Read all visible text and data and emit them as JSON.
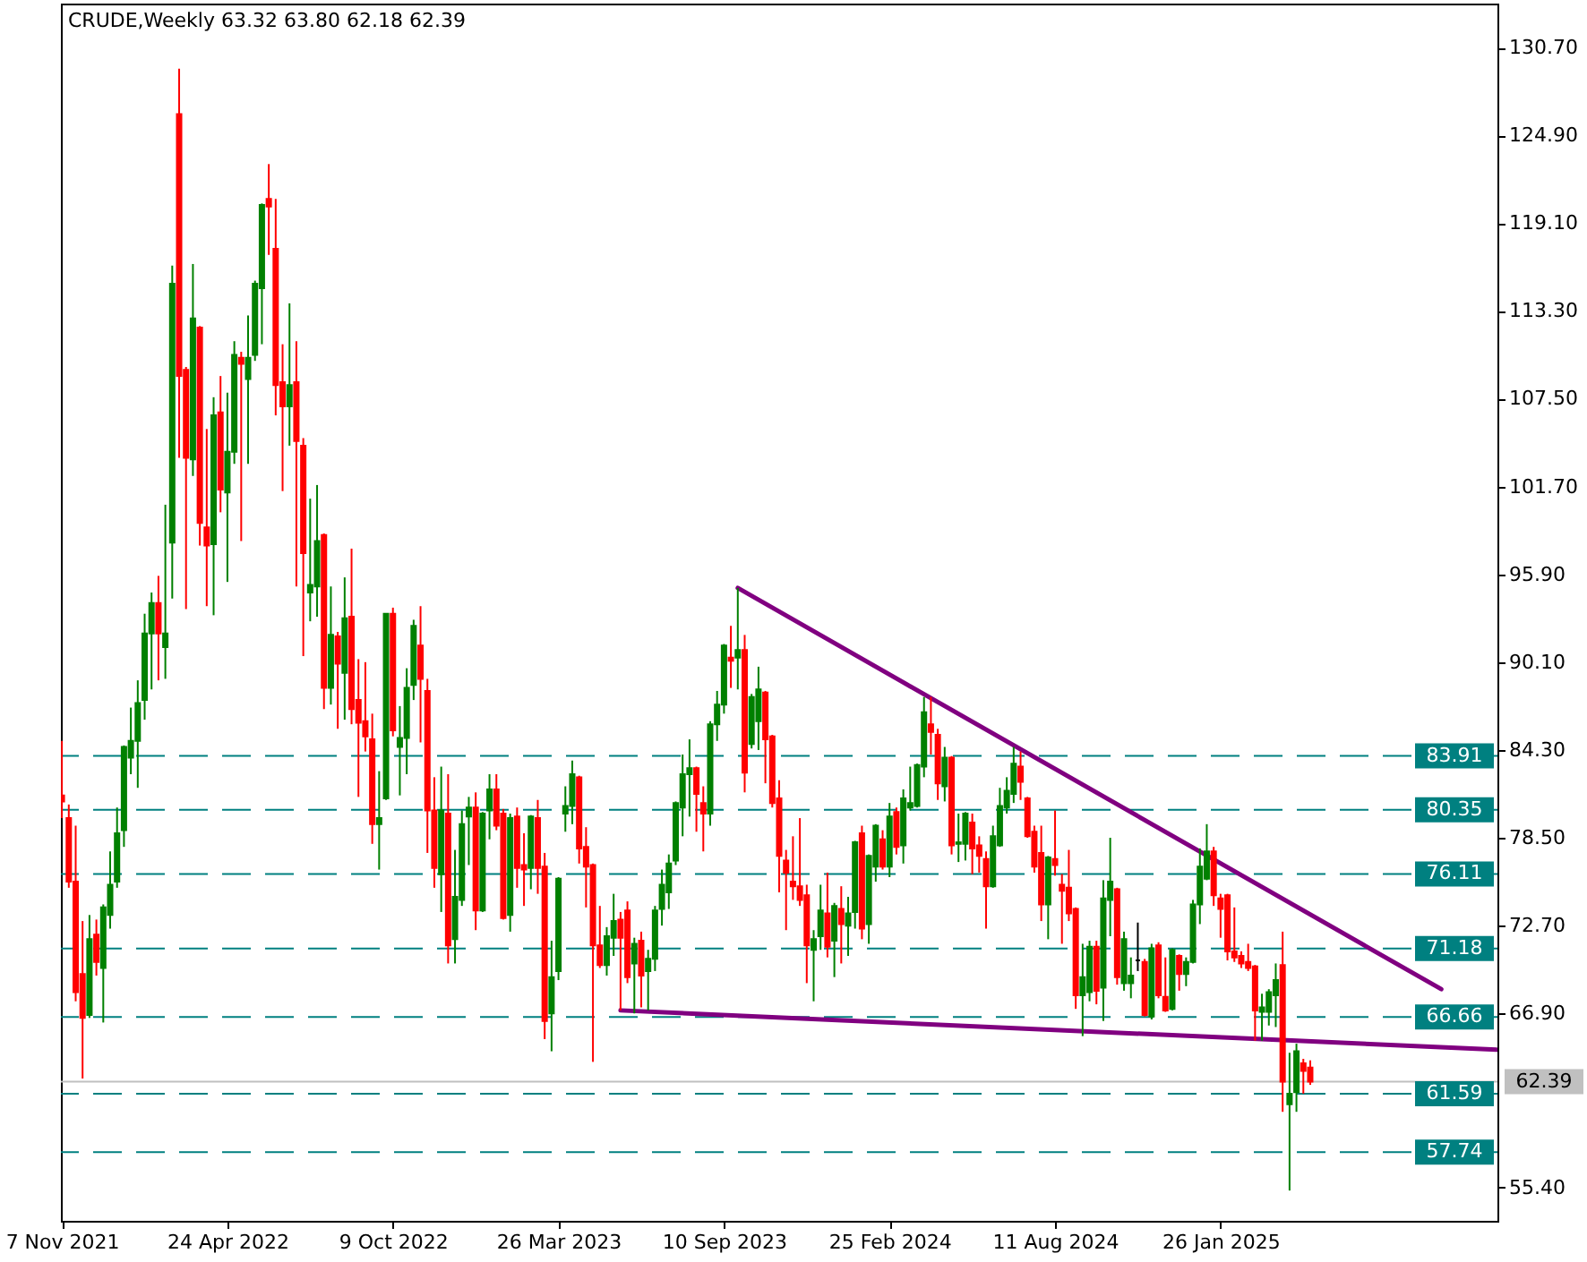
{
  "chart_data": {
    "type": "candlestick",
    "title": "CRUDE,Weekly 63.32 63.80 62.18 62.39",
    "x": [
      "2021-11-07",
      "2021-11-14",
      "2021-11-21",
      "2021-11-28",
      "2021-12-05",
      "2021-12-12",
      "2021-12-19",
      "2021-12-26",
      "2022-01-02",
      "2022-01-09",
      "2022-01-16",
      "2022-01-23",
      "2022-01-30",
      "2022-02-06",
      "2022-02-13",
      "2022-02-20",
      "2022-02-27",
      "2022-03-06",
      "2022-03-13",
      "2022-03-20",
      "2022-03-27",
      "2022-04-03",
      "2022-04-10",
      "2022-04-17",
      "2022-04-24",
      "2022-05-01",
      "2022-05-08",
      "2022-05-15",
      "2022-05-22",
      "2022-05-29",
      "2022-06-05",
      "2022-06-12",
      "2022-06-19",
      "2022-06-26",
      "2022-07-03",
      "2022-07-10",
      "2022-07-17",
      "2022-07-24",
      "2022-07-31",
      "2022-08-07",
      "2022-08-14",
      "2022-08-21",
      "2022-08-28",
      "2022-09-04",
      "2022-09-11",
      "2022-09-18",
      "2022-09-25",
      "2022-10-02",
      "2022-10-09",
      "2022-10-16",
      "2022-10-23",
      "2022-10-30",
      "2022-11-06",
      "2022-11-13",
      "2022-11-20",
      "2022-11-27",
      "2022-12-04",
      "2022-12-11",
      "2022-12-18",
      "2022-12-25",
      "2023-01-01",
      "2023-01-08",
      "2023-01-15",
      "2023-01-22",
      "2023-01-29",
      "2023-02-05",
      "2023-02-12",
      "2023-02-19",
      "2023-02-26",
      "2023-03-05",
      "2023-03-12",
      "2023-03-19",
      "2023-03-26",
      "2023-04-02",
      "2023-04-09",
      "2023-04-16",
      "2023-04-23",
      "2023-04-30",
      "2023-05-07",
      "2023-05-14",
      "2023-05-21",
      "2023-05-28",
      "2023-06-04",
      "2023-06-11",
      "2023-06-18",
      "2023-06-25",
      "2023-07-02",
      "2023-07-09",
      "2023-07-16",
      "2023-07-23",
      "2023-07-30",
      "2023-08-06",
      "2023-08-13",
      "2023-08-20",
      "2023-08-27",
      "2023-09-03",
      "2023-09-10",
      "2023-09-17",
      "2023-09-24",
      "2023-10-01",
      "2023-10-08",
      "2023-10-15",
      "2023-10-22",
      "2023-10-29",
      "2023-11-05",
      "2023-11-12",
      "2023-11-19",
      "2023-11-26",
      "2023-12-03",
      "2023-12-10",
      "2023-12-17",
      "2023-12-24",
      "2023-12-31",
      "2024-01-07",
      "2024-01-14",
      "2024-01-21",
      "2024-01-28",
      "2024-02-04",
      "2024-02-11",
      "2024-02-18",
      "2024-02-25",
      "2024-03-03",
      "2024-03-10",
      "2024-03-17",
      "2024-03-24",
      "2024-03-31",
      "2024-04-07",
      "2024-04-14",
      "2024-04-21",
      "2024-04-28",
      "2024-05-05",
      "2024-05-12",
      "2024-05-19",
      "2024-05-26",
      "2024-06-02",
      "2024-06-09",
      "2024-06-16",
      "2024-06-23",
      "2024-06-30",
      "2024-07-07",
      "2024-07-14",
      "2024-07-21",
      "2024-07-28",
      "2024-08-04",
      "2024-08-11",
      "2024-08-18",
      "2024-08-25",
      "2024-09-01",
      "2024-09-08",
      "2024-09-15",
      "2024-09-22",
      "2024-09-29",
      "2024-10-06",
      "2024-10-13",
      "2024-10-20",
      "2024-10-27",
      "2024-11-03",
      "2024-11-10",
      "2024-11-17",
      "2024-11-24",
      "2024-12-01",
      "2024-12-08",
      "2024-12-15",
      "2024-12-22",
      "2024-12-29",
      "2025-01-05",
      "2025-01-12",
      "2025-01-19",
      "2025-01-26",
      "2025-02-02",
      "2025-02-09",
      "2025-02-16",
      "2025-02-23",
      "2025-03-02",
      "2025-03-09",
      "2025-03-16",
      "2025-03-23",
      "2025-03-30",
      "2025-04-06",
      "2025-04-13",
      "2025-04-20",
      "2025-04-27"
    ],
    "ohlc": [
      [
        81.3,
        84.9,
        79.8,
        80.9
      ],
      [
        79.8,
        80.7,
        75.2,
        75.6
      ],
      [
        75.6,
        79.3,
        67.7,
        68.3
      ],
      [
        69.5,
        73.0,
        62.6,
        66.6
      ],
      [
        66.8,
        73.4,
        66.6,
        71.8
      ],
      [
        72.1,
        73.1,
        69.4,
        70.3
      ],
      [
        69.9,
        74.1,
        66.3,
        73.9
      ],
      [
        73.4,
        77.6,
        72.5,
        75.4
      ],
      [
        75.6,
        80.5,
        75.2,
        78.8
      ],
      [
        79.0,
        84.6,
        77.9,
        84.5
      ],
      [
        83.8,
        87.1,
        82.7,
        84.9
      ],
      [
        84.9,
        88.9,
        81.8,
        87.4
      ],
      [
        87.6,
        93.3,
        86.3,
        92.0
      ],
      [
        92.0,
        94.7,
        88.3,
        94.0
      ],
      [
        94.0,
        95.8,
        88.9,
        92.0
      ],
      [
        91.1,
        100.5,
        89.0,
        92.0
      ],
      [
        98.0,
        116.3,
        94.3,
        115.1
      ],
      [
        126.3,
        129.3,
        103.6,
        109.0
      ],
      [
        109.4,
        109.6,
        93.6,
        103.6
      ],
      [
        103.5,
        116.4,
        102.4,
        112.8
      ],
      [
        112.2,
        112.3,
        97.8,
        99.3
      ],
      [
        99.0,
        105.5,
        93.8,
        97.8
      ],
      [
        97.9,
        107.6,
        93.2,
        106.4
      ],
      [
        106.6,
        109.0,
        100.0,
        101.5
      ],
      [
        101.3,
        107.9,
        95.4,
        104.0
      ],
      [
        104.0,
        111.3,
        103.2,
        110.4
      ],
      [
        110.2,
        110.6,
        98.1,
        109.8
      ],
      [
        108.8,
        113.0,
        103.2,
        110.2
      ],
      [
        110.4,
        115.3,
        110.0,
        115.1
      ],
      [
        114.8,
        120.4,
        111.1,
        120.3
      ],
      [
        120.7,
        123.0,
        117.0,
        120.2
      ],
      [
        117.4,
        120.7,
        106.4,
        108.4
      ],
      [
        108.6,
        111.1,
        101.4,
        107.0
      ],
      [
        107.0,
        113.8,
        104.4,
        108.4
      ],
      [
        108.6,
        111.3,
        95.1,
        104.7
      ],
      [
        104.4,
        104.9,
        90.5,
        97.3
      ],
      [
        94.7,
        100.9,
        92.8,
        95.2
      ],
      [
        95.1,
        101.8,
        93.1,
        98.1
      ],
      [
        98.5,
        98.6,
        87.0,
        88.4
      ],
      [
        88.4,
        95.1,
        87.3,
        91.9
      ],
      [
        91.8,
        92.1,
        85.7,
        90.0
      ],
      [
        89.4,
        95.7,
        86.3,
        93.0
      ],
      [
        93.1,
        97.6,
        86.0,
        87.0
      ],
      [
        87.6,
        90.3,
        81.2,
        86.1
      ],
      [
        86.2,
        90.1,
        84.2,
        85.2
      ],
      [
        85.0,
        86.7,
        78.1,
        79.4
      ],
      [
        79.4,
        82.9,
        76.4,
        79.8
      ],
      [
        81.1,
        93.3,
        81.0,
        93.3
      ],
      [
        93.3,
        93.7,
        85.2,
        85.6
      ],
      [
        84.5,
        87.2,
        81.3,
        85.1
      ],
      [
        85.1,
        89.7,
        82.7,
        88.4
      ],
      [
        88.6,
        92.9,
        87.6,
        92.5
      ],
      [
        91.2,
        93.8,
        84.8,
        89.0
      ],
      [
        88.2,
        89.0,
        77.5,
        80.3
      ],
      [
        80.3,
        82.5,
        75.2,
        76.5
      ],
      [
        76.1,
        83.2,
        73.6,
        80.3
      ],
      [
        80.1,
        82.7,
        70.2,
        71.4
      ],
      [
        71.8,
        77.7,
        70.2,
        74.6
      ],
      [
        74.4,
        80.3,
        74.0,
        79.4
      ],
      [
        79.9,
        81.2,
        76.7,
        80.5
      ],
      [
        80.5,
        81.5,
        72.4,
        73.7
      ],
      [
        73.7,
        80.2,
        73.6,
        80.1
      ],
      [
        80.3,
        82.7,
        78.4,
        81.7
      ],
      [
        81.7,
        82.7,
        79.0,
        79.3
      ],
      [
        80.1,
        80.4,
        73.1,
        73.2
      ],
      [
        73.4,
        80.1,
        72.3,
        79.8
      ],
      [
        79.9,
        80.5,
        75.2,
        76.5
      ],
      [
        76.7,
        78.8,
        74.0,
        76.4
      ],
      [
        76.5,
        80.0,
        75.1,
        79.9
      ],
      [
        79.8,
        81.0,
        74.8,
        76.5
      ],
      [
        76.6,
        77.5,
        65.2,
        66.4
      ],
      [
        66.9,
        71.7,
        64.4,
        69.3
      ],
      [
        69.7,
        75.9,
        69.1,
        75.8
      ],
      [
        80.1,
        81.9,
        78.9,
        80.6
      ],
      [
        80.6,
        83.6,
        79.4,
        82.7
      ],
      [
        82.5,
        82.6,
        76.8,
        77.8
      ],
      [
        77.9,
        79.2,
        73.9,
        76.6
      ],
      [
        76.7,
        76.8,
        63.7,
        71.4
      ],
      [
        71.4,
        74.0,
        69.9,
        70.1
      ],
      [
        70.1,
        72.6,
        69.4,
        72.0
      ],
      [
        71.9,
        74.8,
        70.7,
        73.0
      ],
      [
        73.1,
        73.6,
        67.1,
        71.9
      ],
      [
        73.7,
        74.3,
        68.9,
        69.3
      ],
      [
        70.2,
        71.9,
        66.9,
        71.5
      ],
      [
        71.7,
        72.3,
        67.3,
        69.4
      ],
      [
        69.7,
        71.1,
        67.1,
        70.5
      ],
      [
        70.5,
        74.0,
        69.7,
        73.7
      ],
      [
        73.8,
        76.4,
        72.7,
        75.4
      ],
      [
        74.9,
        77.4,
        73.8,
        76.8
      ],
      [
        77.0,
        80.9,
        76.7,
        80.8
      ],
      [
        80.5,
        84.0,
        78.6,
        82.7
      ],
      [
        82.7,
        85.0,
        79.9,
        83.1
      ],
      [
        83.1,
        83.2,
        78.9,
        81.4
      ],
      [
        80.8,
        81.9,
        77.6,
        80.1
      ],
      [
        80.1,
        86.2,
        79.3,
        86.0
      ],
      [
        86.0,
        88.2,
        84.9,
        87.3
      ],
      [
        87.3,
        91.3,
        86.7,
        91.2
      ],
      [
        90.4,
        92.5,
        88.4,
        90.2
      ],
      [
        90.4,
        95.0,
        88.3,
        90.9
      ],
      [
        90.9,
        91.9,
        81.5,
        82.8
      ],
      [
        84.7,
        88.0,
        84.4,
        87.8
      ],
      [
        86.2,
        89.8,
        84.3,
        88.3
      ],
      [
        88.1,
        88.2,
        82.1,
        85.0
      ],
      [
        85.2,
        85.3,
        80.5,
        80.8
      ],
      [
        81.1,
        82.3,
        74.9,
        77.3
      ],
      [
        77.0,
        77.7,
        72.4,
        76.2
      ],
      [
        75.6,
        78.6,
        74.4,
        75.3
      ],
      [
        75.3,
        79.8,
        74.0,
        74.4
      ],
      [
        74.7,
        75.4,
        68.9,
        71.4
      ],
      [
        71.1,
        72.4,
        67.7,
        71.8
      ],
      [
        72.0,
        75.4,
        71.1,
        73.7
      ],
      [
        73.5,
        76.2,
        70.6,
        71.3
      ],
      [
        71.7,
        74.2,
        69.3,
        74.0
      ],
      [
        73.8,
        75.3,
        70.2,
        72.8
      ],
      [
        72.7,
        74.6,
        70.7,
        73.5
      ],
      [
        73.6,
        78.3,
        72.5,
        78.2
      ],
      [
        78.8,
        79.3,
        71.8,
        72.5
      ],
      [
        72.8,
        77.4,
        71.5,
        77.3
      ],
      [
        76.6,
        79.4,
        75.6,
        79.3
      ],
      [
        78.4,
        79.0,
        76.4,
        76.6
      ],
      [
        76.6,
        80.8,
        75.9,
        79.9
      ],
      [
        80.2,
        80.5,
        77.4,
        77.9
      ],
      [
        78.0,
        81.7,
        76.8,
        81.1
      ],
      [
        80.5,
        83.2,
        80.3,
        80.8
      ],
      [
        80.6,
        83.4,
        80.5,
        83.3
      ],
      [
        83.2,
        87.8,
        82.5,
        86.8
      ],
      [
        86.0,
        87.8,
        84.0,
        85.5
      ],
      [
        85.3,
        85.7,
        81.0,
        82.1
      ],
      [
        81.9,
        84.5,
        80.9,
        83.8
      ],
      [
        83.8,
        83.9,
        77.4,
        78.0
      ],
      [
        78.1,
        80.1,
        76.9,
        78.2
      ],
      [
        78.1,
        80.2,
        77.0,
        80.1
      ],
      [
        79.5,
        80.1,
        76.1,
        77.8
      ],
      [
        78.0,
        78.6,
        76.2,
        77.3
      ],
      [
        77.1,
        77.6,
        72.5,
        75.3
      ],
      [
        75.3,
        79.3,
        75.2,
        78.6
      ],
      [
        78.0,
        81.8,
        77.9,
        80.6
      ],
      [
        80.5,
        82.5,
        80.1,
        81.6
      ],
      [
        81.4,
        84.5,
        80.8,
        83.4
      ],
      [
        83.2,
        84.2,
        81.0,
        82.2
      ],
      [
        81.1,
        81.2,
        78.5,
        78.6
      ],
      [
        78.9,
        79.3,
        76.2,
        76.6
      ],
      [
        77.5,
        79.3,
        73.0,
        74.1
      ],
      [
        74.1,
        77.3,
        71.8,
        77.2
      ],
      [
        77.1,
        80.3,
        76.0,
        76.7
      ],
      [
        75.4,
        76.1,
        71.5,
        75.0
      ],
      [
        75.2,
        77.7,
        73.0,
        73.5
      ],
      [
        73.8,
        73.9,
        67.2,
        68.1
      ],
      [
        68.1,
        71.5,
        65.4,
        69.3
      ],
      [
        68.3,
        71.7,
        67.7,
        71.3
      ],
      [
        71.3,
        71.7,
        67.5,
        68.4
      ],
      [
        68.6,
        75.7,
        66.4,
        74.5
      ],
      [
        74.4,
        78.5,
        72.0,
        75.6
      ],
      [
        75.1,
        75.2,
        68.8,
        69.3
      ],
      [
        68.9,
        72.3,
        68.4,
        71.8
      ],
      [
        68.9,
        70.6,
        67.9,
        69.4
      ],
      [
        70.4,
        72.9,
        69.7,
        70.4
      ],
      [
        70.3,
        70.5,
        66.7,
        66.8
      ],
      [
        66.7,
        71.5,
        66.5,
        71.2
      ],
      [
        71.4,
        71.6,
        67.9,
        68.1
      ],
      [
        68.0,
        70.6,
        67.0,
        67.1
      ],
      [
        67.2,
        71.2,
        67.1,
        71.1
      ],
      [
        70.7,
        70.8,
        68.4,
        69.5
      ],
      [
        69.5,
        70.6,
        68.7,
        70.3
      ],
      [
        70.3,
        74.4,
        70.2,
        74.1
      ],
      [
        74.1,
        77.8,
        72.8,
        76.6
      ],
      [
        75.8,
        79.4,
        75.7,
        77.6
      ],
      [
        77.6,
        77.9,
        74.0,
        74.7
      ],
      [
        74.5,
        74.8,
        71.9,
        73.8
      ],
      [
        74.7,
        74.8,
        70.4,
        71.0
      ],
      [
        71.0,
        73.9,
        70.3,
        70.6
      ],
      [
        70.7,
        71.0,
        69.9,
        70.2
      ],
      [
        70.3,
        71.5,
        69.7,
        69.9
      ],
      [
        70.0,
        70.1,
        65.1,
        67.1
      ],
      [
        67.0,
        68.2,
        65.1,
        67.3
      ],
      [
        67.0,
        68.5,
        66.1,
        68.3
      ],
      [
        68.1,
        70.2,
        66.0,
        69.1
      ],
      [
        70.1,
        72.3,
        60.4,
        62.4
      ],
      [
        60.9,
        64.3,
        55.2,
        61.6
      ],
      [
        61.7,
        64.9,
        60.4,
        64.4
      ],
      [
        63.6,
        63.9,
        61.6,
        63.1
      ],
      [
        63.32,
        63.8,
        62.18,
        62.39
      ]
    ],
    "colors": [
      "#ff0000",
      "#ff0000",
      "#ff0000",
      "#ff0000",
      "#008000",
      "#ff0000",
      "#008000",
      "#008000",
      "#008000",
      "#008000",
      "#008000",
      "#008000",
      "#008000",
      "#008000",
      "#ff0000",
      "#008000",
      "#008000",
      "#ff0000",
      "#ff0000",
      "#008000",
      "#ff0000",
      "#ff0000",
      "#008000",
      "#ff0000",
      "#008000",
      "#008000",
      "#ff0000",
      "#008000",
      "#008000",
      "#008000",
      "#ff0000",
      "#ff0000",
      "#ff0000",
      "#008000",
      "#ff0000",
      "#ff0000",
      "#008000",
      "#008000",
      "#ff0000",
      "#008000",
      "#ff0000",
      "#008000",
      "#ff0000",
      "#ff0000",
      "#ff0000",
      "#ff0000",
      "#008000",
      "#008000",
      "#ff0000",
      "#008000",
      "#008000",
      "#008000",
      "#ff0000",
      "#ff0000",
      "#ff0000",
      "#008000",
      "#ff0000",
      "#008000",
      "#008000",
      "#008000",
      "#ff0000",
      "#008000",
      "#008000",
      "#ff0000",
      "#ff0000",
      "#008000",
      "#ff0000",
      "#ff0000",
      "#008000",
      "#ff0000",
      "#ff0000",
      "#008000",
      "#008000",
      "#008000",
      "#008000",
      "#ff0000",
      "#ff0000",
      "#ff0000",
      "#ff0000",
      "#008000",
      "#008000",
      "#ff0000",
      "#ff0000",
      "#008000",
      "#ff0000",
      "#008000",
      "#008000",
      "#008000",
      "#008000",
      "#008000",
      "#008000",
      "#008000",
      "#ff0000",
      "#ff0000",
      "#008000",
      "#008000",
      "#008000",
      "#ff0000",
      "#008000",
      "#ff0000",
      "#008000",
      "#008000",
      "#ff0000",
      "#ff0000",
      "#ff0000",
      "#ff0000",
      "#ff0000",
      "#ff0000",
      "#ff0000",
      "#008000",
      "#008000",
      "#ff0000",
      "#008000",
      "#ff0000",
      "#008000",
      "#008000",
      "#ff0000",
      "#008000",
      "#008000",
      "#ff0000",
      "#008000",
      "#ff0000",
      "#008000",
      "#008000",
      "#008000",
      "#008000",
      "#ff0000",
      "#ff0000",
      "#008000",
      "#ff0000",
      "#008000",
      "#008000",
      "#ff0000",
      "#ff0000",
      "#ff0000",
      "#008000",
      "#008000",
      "#008000",
      "#008000",
      "#ff0000",
      "#ff0000",
      "#ff0000",
      "#ff0000",
      "#008000",
      "#ff0000",
      "#ff0000",
      "#ff0000",
      "#ff0000",
      "#008000",
      "#008000",
      "#ff0000",
      "#008000",
      "#008000",
      "#ff0000",
      "#008000",
      "#008000",
      "#000000",
      "#ff0000",
      "#008000",
      "#ff0000",
      "#ff0000",
      "#008000",
      "#ff0000",
      "#008000",
      "#008000",
      "#008000",
      "#008000",
      "#ff0000",
      "#ff0000",
      "#ff0000",
      "#ff0000",
      "#ff0000",
      "#ff0000",
      "#ff0000",
      "#008000",
      "#008000",
      "#008000",
      "#ff0000",
      "#008000",
      "#008000",
      "#ff0000",
      "#ff0000"
    ],
    "series": [
      {
        "type": "line",
        "x": [
          "2023-09-24",
          "2025-09-07"
        ],
        "values": [
          95.0,
          68.5
        ],
        "color": "#800080"
      },
      {
        "type": "line",
        "x": [
          "2023-05-28",
          "2025-11-02"
        ],
        "values": [
          67.1,
          64.5
        ],
        "color": "#800080"
      }
    ],
    "xlim": [
      "2021-11-06",
      "2025-11-03"
    ],
    "xticks": [
      {
        "value": "2021-11-07",
        "label": "7 Nov 2021"
      },
      {
        "value": "2022-04-24",
        "label": "24 Apr 2022"
      },
      {
        "value": "2022-10-09",
        "label": "9 Oct 2022"
      },
      {
        "value": "2023-03-26",
        "label": "26 Mar 2023"
      },
      {
        "value": "2023-09-10",
        "label": "10 Sep 2023"
      },
      {
        "value": "2024-02-25",
        "label": "25 Feb 2024"
      },
      {
        "value": "2024-08-11",
        "label": "11 Aug 2024"
      },
      {
        "value": "2025-01-26",
        "label": "26 Jan 2025"
      }
    ],
    "ylim": [
      53.2,
      133.6
    ],
    "yticks": [
      {
        "value": 130.7,
        "label": "130.70"
      },
      {
        "value": 124.9,
        "label": "124.90"
      },
      {
        "value": 119.1,
        "label": "119.10"
      },
      {
        "value": 113.3,
        "label": "113.30"
      },
      {
        "value": 107.5,
        "label": "107.50"
      },
      {
        "value": 101.7,
        "label": "101.70"
      },
      {
        "value": 95.9,
        "label": "95.90"
      },
      {
        "value": 90.1,
        "label": "90.10"
      },
      {
        "value": 84.3,
        "label": "84.30"
      },
      {
        "value": 78.5,
        "label": "78.50"
      },
      {
        "value": 72.7,
        "label": "72.70"
      },
      {
        "value": 66.9,
        "label": "66.90"
      },
      {
        "value": 55.4,
        "label": "55.40"
      }
    ],
    "ref_lines": [
      {
        "axis": "y",
        "value": 83.91,
        "label": "83.91",
        "color": "#008080",
        "line_style": "dashed"
      },
      {
        "axis": "y",
        "value": 80.35,
        "label": "80.35",
        "color": "#008080",
        "line_style": "dashed"
      },
      {
        "axis": "y",
        "value": 76.11,
        "label": "76.11",
        "color": "#008080",
        "line_style": "dashed"
      },
      {
        "axis": "y",
        "value": 71.18,
        "label": "71.18",
        "color": "#008080",
        "line_style": "dashed"
      },
      {
        "axis": "y",
        "value": 66.66,
        "label": "66.66",
        "color": "#008080",
        "line_style": "dashed"
      },
      {
        "axis": "y",
        "value": 61.59,
        "label": "61.59",
        "color": "#008080",
        "line_style": "dashed"
      },
      {
        "axis": "y",
        "value": 57.74,
        "label": "57.74",
        "color": "#008080",
        "line_style": "dashed"
      },
      {
        "axis": "y",
        "value": 62.39,
        "label": "62.39",
        "color": "#c0c0c0",
        "line_style": "solid"
      }
    ]
  }
}
